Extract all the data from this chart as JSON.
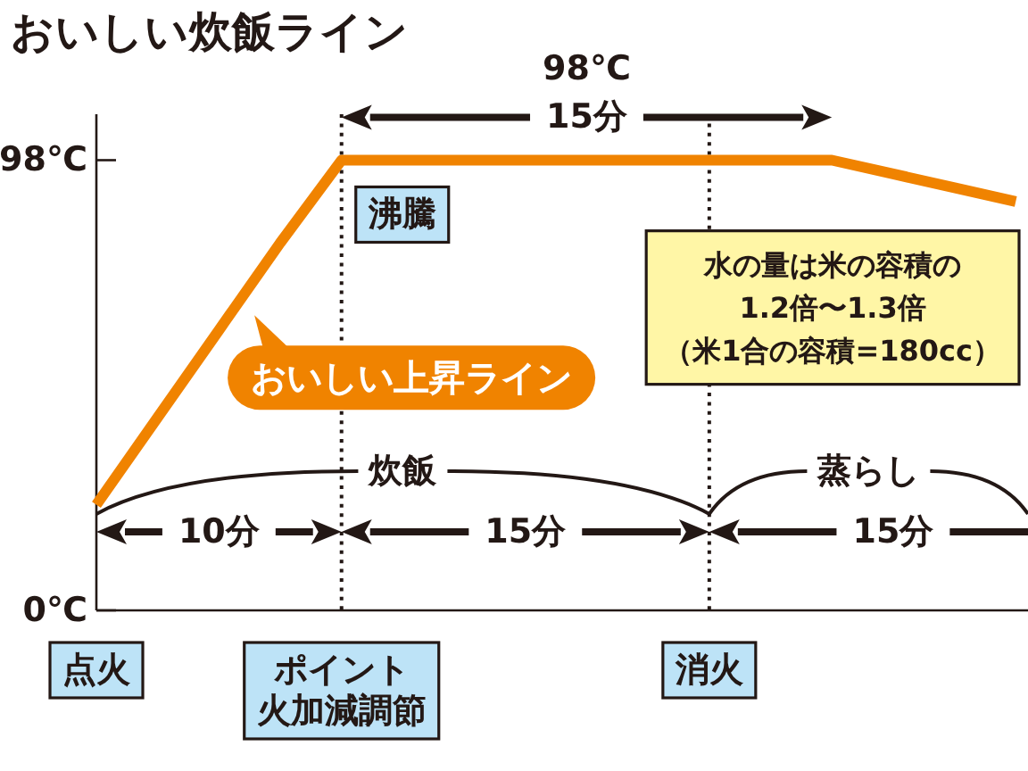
{
  "chart_data": {
    "type": "line",
    "title": "おいしい炊飯ライン",
    "categories": [
      "点火",
      null,
      null,
      null,
      "ポイント火加減調節",
      null,
      null,
      null,
      null,
      null,
      "消火",
      null,
      null,
      null,
      null,
      null
    ],
    "values": [
      23,
      42,
      61,
      80,
      98,
      98,
      98,
      98,
      98,
      98,
      98,
      98,
      98,
      95,
      92,
      89
    ],
    "color": "#f08300",
    "ylim": [
      0,
      108
    ],
    "yticks": [
      {
        "value": 98,
        "label": "98℃"
      },
      {
        "value": 0,
        "label": "0℃"
      }
    ],
    "ref_lines": [
      {
        "axis": "x",
        "value": "ポイント火加減調節",
        "line_style": "dotted",
        "color": "#231815"
      },
      {
        "axis": "x",
        "value": "消火",
        "line_style": "dotted",
        "color": "#231815"
      }
    ],
    "annotations": [
      {
        "text": "98℃",
        "y": 98
      },
      "15分",
      {
        "text": "沸騰",
        "x": "ポイント火加減調節",
        "y": 98
      },
      "おいしい上昇ライン",
      "水の量は米の容積の",
      "1.2倍〜1.3倍",
      "（米1合の容積=180cc）",
      {
        "text": "炊飯",
        "x": "消火",
        "y": 21
      },
      {
        "text": "蒸らし",
        "x": "消火",
        "y": 21
      },
      "10分",
      "15分",
      "15分"
    ]
  }
}
